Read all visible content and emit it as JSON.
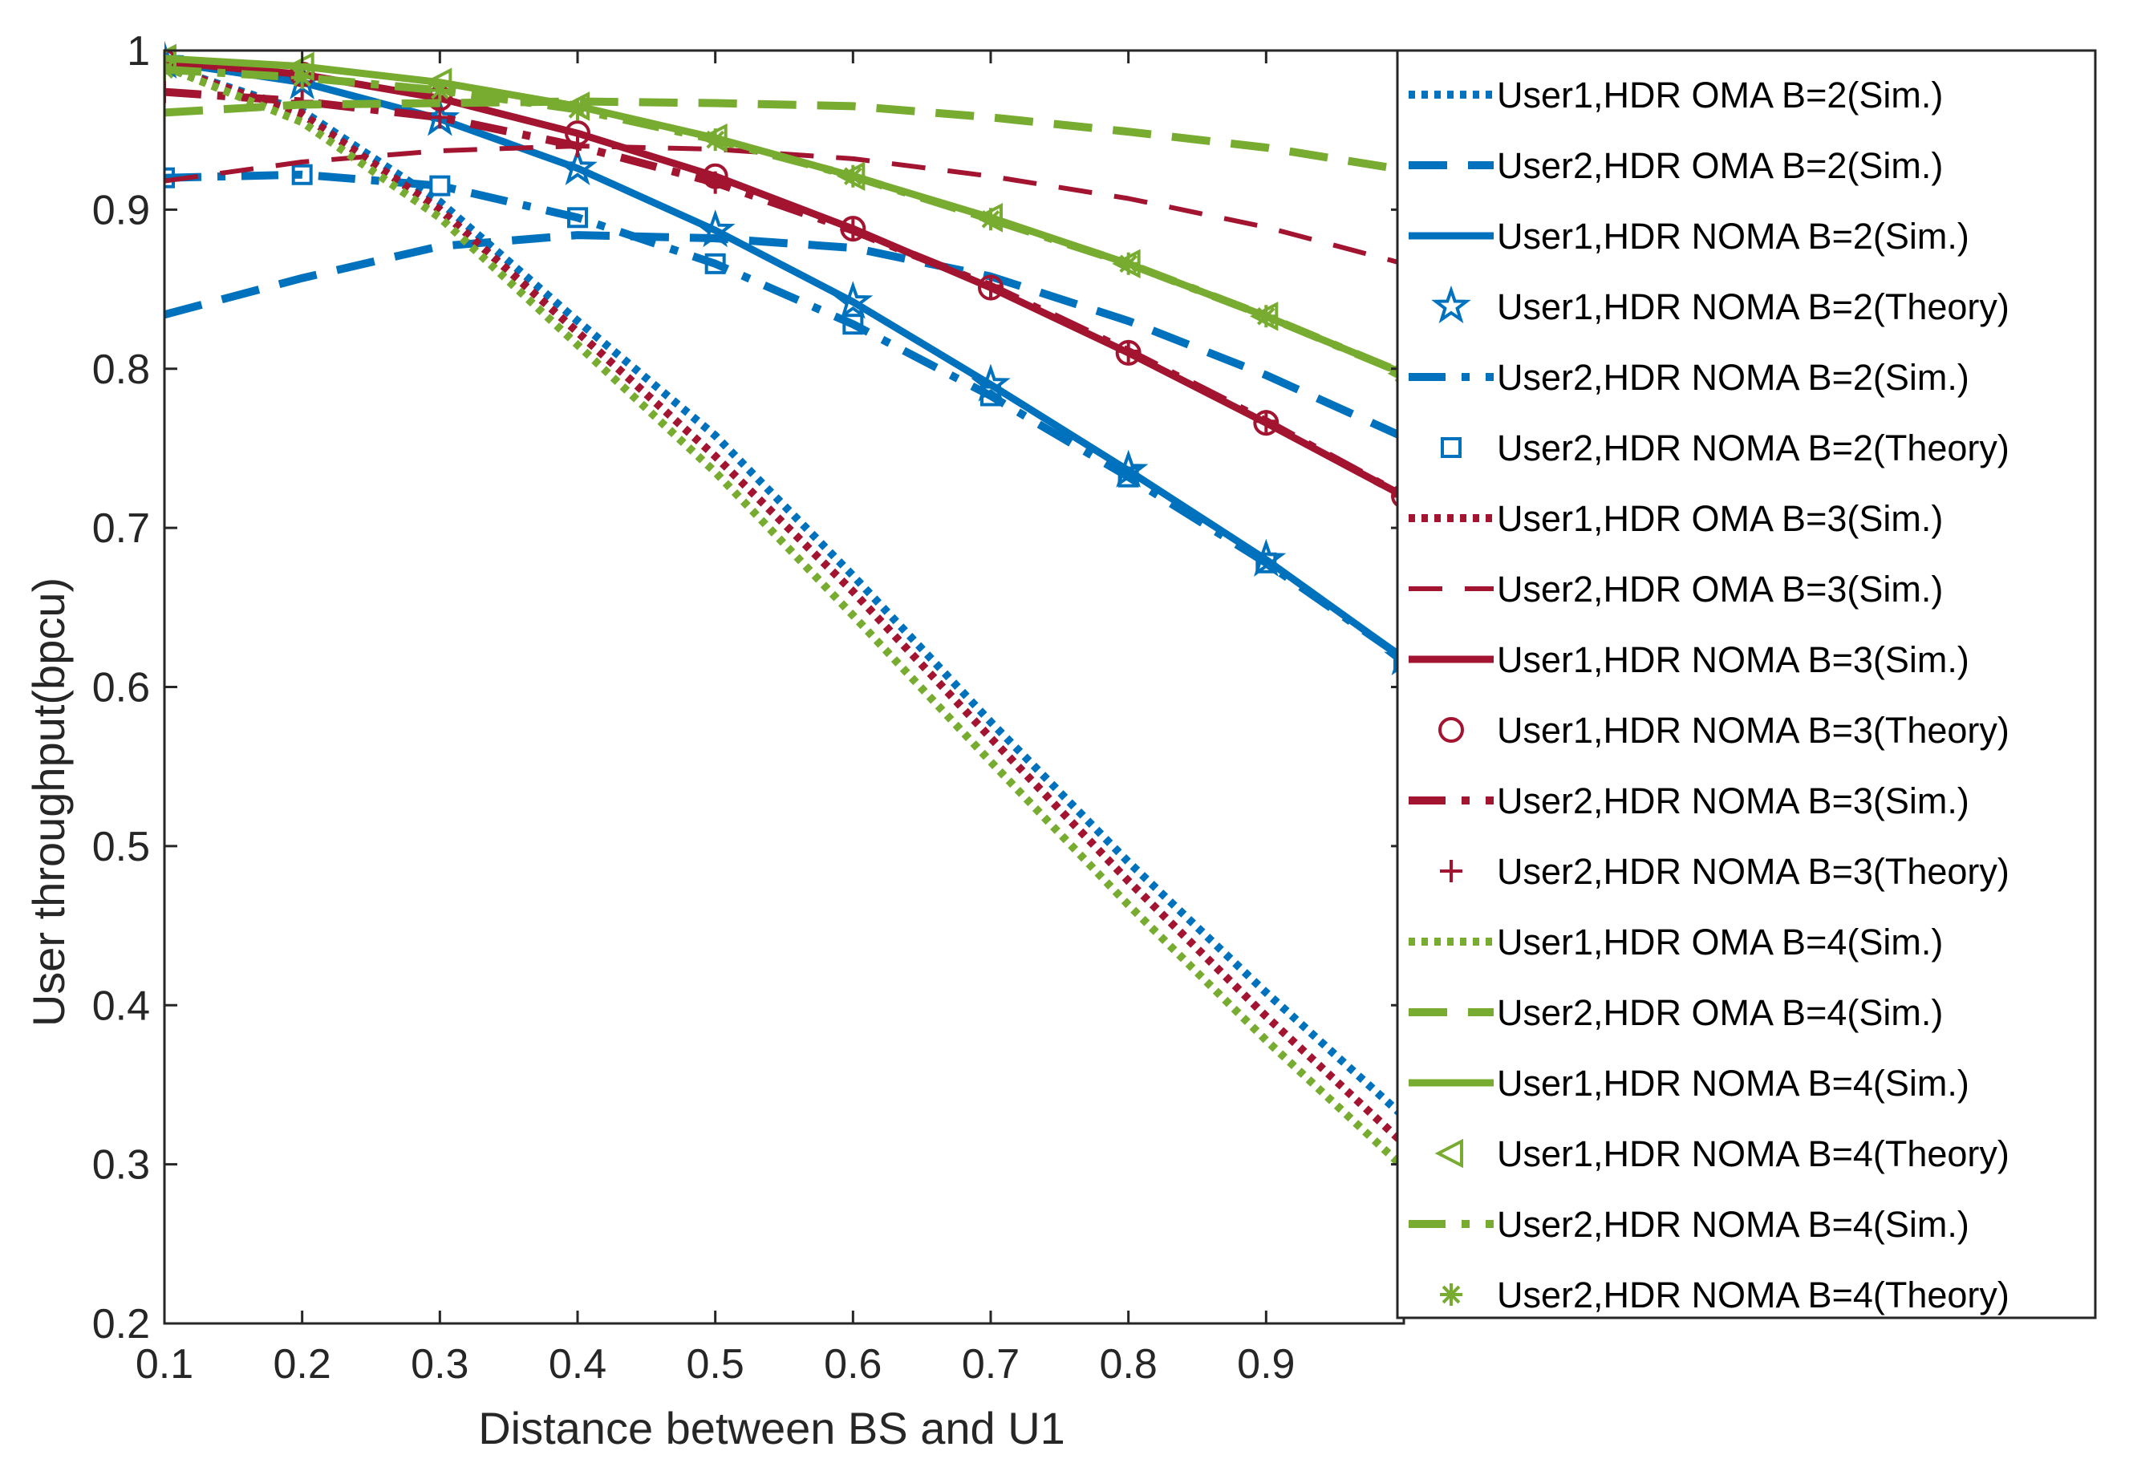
{
  "chart_data": {
    "type": "line",
    "title": "",
    "xlabel": "Distance between BS and U1",
    "ylabel": "User throughput(bpcu)",
    "xlim": [
      0.1,
      1.0
    ],
    "ylim": [
      0.2,
      1.0
    ],
    "xticks": [
      "0.1",
      "0.2",
      "0.3",
      "0.4",
      "0.5",
      "0.6",
      "0.7",
      "0.8",
      "0.9"
    ],
    "yticks": [
      "0.2",
      "0.3",
      "0.4",
      "0.5",
      "0.6",
      "0.7",
      "0.8",
      "0.9",
      "1"
    ],
    "legend_position": "right",
    "x": [
      0.1,
      0.2,
      0.3,
      0.4,
      0.5,
      0.6,
      0.7,
      0.8,
      0.9,
      1.0
    ],
    "series": [
      {
        "name": "User1,HDR OMA B=2(Sim.)",
        "color": "#0072BD",
        "style": "dotted",
        "marker": "none",
        "values": [
          0.99,
          0.962,
          0.905,
          0.83,
          0.758,
          0.67,
          0.578,
          0.49,
          0.408,
          0.33
        ]
      },
      {
        "name": "User2,HDR OMA B=2(Sim.)",
        "color": "#0072BD",
        "style": "dashed",
        "marker": "none",
        "values": [
          0.834,
          0.857,
          0.877,
          0.884,
          0.882,
          0.876,
          0.858,
          0.83,
          0.796,
          0.757
        ]
      },
      {
        "name": "User1,HDR NOMA B=2(Sim.)",
        "color": "#0072BD",
        "style": "solid",
        "marker": "none",
        "values": [
          0.993,
          0.98,
          0.957,
          0.926,
          0.887,
          0.842,
          0.79,
          0.736,
          0.68,
          0.618
        ]
      },
      {
        "name": "User1,HDR NOMA B=2(Theory)",
        "color": "#0072BD",
        "style": "none",
        "marker": "star",
        "values": [
          0.993,
          0.98,
          0.957,
          0.926,
          0.887,
          0.842,
          0.79,
          0.736,
          0.68,
          0.618
        ]
      },
      {
        "name": "User2,HDR NOMA B=2(Sim.)",
        "color": "#0072BD",
        "style": "dashdot",
        "marker": "none",
        "values": [
          0.92,
          0.922,
          0.915,
          0.895,
          0.866,
          0.828,
          0.783,
          0.732,
          0.678,
          0.618
        ]
      },
      {
        "name": "User2,HDR NOMA B=2(Theory)",
        "color": "#0072BD",
        "style": "none",
        "marker": "square",
        "values": [
          0.92,
          0.922,
          0.915,
          0.895,
          0.866,
          0.828,
          0.783,
          0.732,
          0.678,
          0.618
        ]
      },
      {
        "name": "User1,HDR OMA B=3(Sim.)",
        "color": "#A2142F",
        "style": "dotted",
        "marker": "none",
        "values": [
          0.99,
          0.96,
          0.9,
          0.823,
          0.745,
          0.66,
          0.568,
          0.478,
          0.393,
          0.313
        ]
      },
      {
        "name": "User2,HDR OMA B=3(Sim.)",
        "color": "#A2142F",
        "style": "dashed-thin",
        "marker": "none",
        "values": [
          0.918,
          0.93,
          0.937,
          0.94,
          0.938,
          0.932,
          0.921,
          0.907,
          0.889,
          0.866
        ]
      },
      {
        "name": "User1,HDR NOMA B=3(Sim.)",
        "color": "#A2142F",
        "style": "solid",
        "marker": "none",
        "values": [
          0.993,
          0.985,
          0.97,
          0.948,
          0.921,
          0.888,
          0.851,
          0.81,
          0.766,
          0.72
        ]
      },
      {
        "name": "User1,HDR NOMA B=3(Theory)",
        "color": "#A2142F",
        "style": "none",
        "marker": "circle",
        "values": [
          0.993,
          0.985,
          0.97,
          0.948,
          0.921,
          0.888,
          0.851,
          0.81,
          0.766,
          0.72
        ]
      },
      {
        "name": "User2,HDR NOMA B=3(Sim.)",
        "color": "#A2142F",
        "style": "dashdot",
        "marker": "none",
        "values": [
          0.974,
          0.968,
          0.958,
          0.94,
          0.917,
          0.887,
          0.852,
          0.811,
          0.767,
          0.72
        ]
      },
      {
        "name": "User2,HDR NOMA B=3(Theory)",
        "color": "#A2142F",
        "style": "none",
        "marker": "plus",
        "values": [
          0.974,
          0.968,
          0.958,
          0.94,
          0.917,
          0.887,
          0.852,
          0.811,
          0.767,
          0.72
        ]
      },
      {
        "name": "User1,HDR OMA B=4(Sim.)",
        "color": "#77AC30",
        "style": "dotted",
        "marker": "none",
        "values": [
          0.99,
          0.955,
          0.895,
          0.815,
          0.735,
          0.645,
          0.553,
          0.463,
          0.378,
          0.298
        ]
      },
      {
        "name": "User2,HDR OMA B=4(Sim.)",
        "color": "#77AC30",
        "style": "dashed",
        "marker": "none",
        "values": [
          0.961,
          0.966,
          0.967,
          0.968,
          0.967,
          0.965,
          0.958,
          0.949,
          0.939,
          0.925
        ]
      },
      {
        "name": "User1,HDR NOMA B=4(Sim.)",
        "color": "#77AC30",
        "style": "solid",
        "marker": "none",
        "values": [
          0.995,
          0.99,
          0.98,
          0.965,
          0.945,
          0.921,
          0.895,
          0.866,
          0.833,
          0.797
        ]
      },
      {
        "name": "User1,HDR NOMA B=4(Theory)",
        "color": "#77AC30",
        "style": "none",
        "marker": "triangle-left",
        "values": [
          0.995,
          0.99,
          0.98,
          0.965,
          0.945,
          0.921,
          0.895,
          0.866,
          0.833,
          0.797
        ]
      },
      {
        "name": "User2,HDR NOMA B=4(Sim.)",
        "color": "#77AC30",
        "style": "dashdot",
        "marker": "none",
        "values": [
          0.988,
          0.983,
          0.975,
          0.963,
          0.944,
          0.921,
          0.894,
          0.866,
          0.833,
          0.797
        ]
      },
      {
        "name": "User2,HDR NOMA B=4(Theory)",
        "color": "#77AC30",
        "style": "none",
        "marker": "asterisk",
        "values": [
          0.988,
          0.983,
          0.975,
          0.963,
          0.944,
          0.921,
          0.894,
          0.866,
          0.833,
          0.797
        ]
      }
    ]
  }
}
